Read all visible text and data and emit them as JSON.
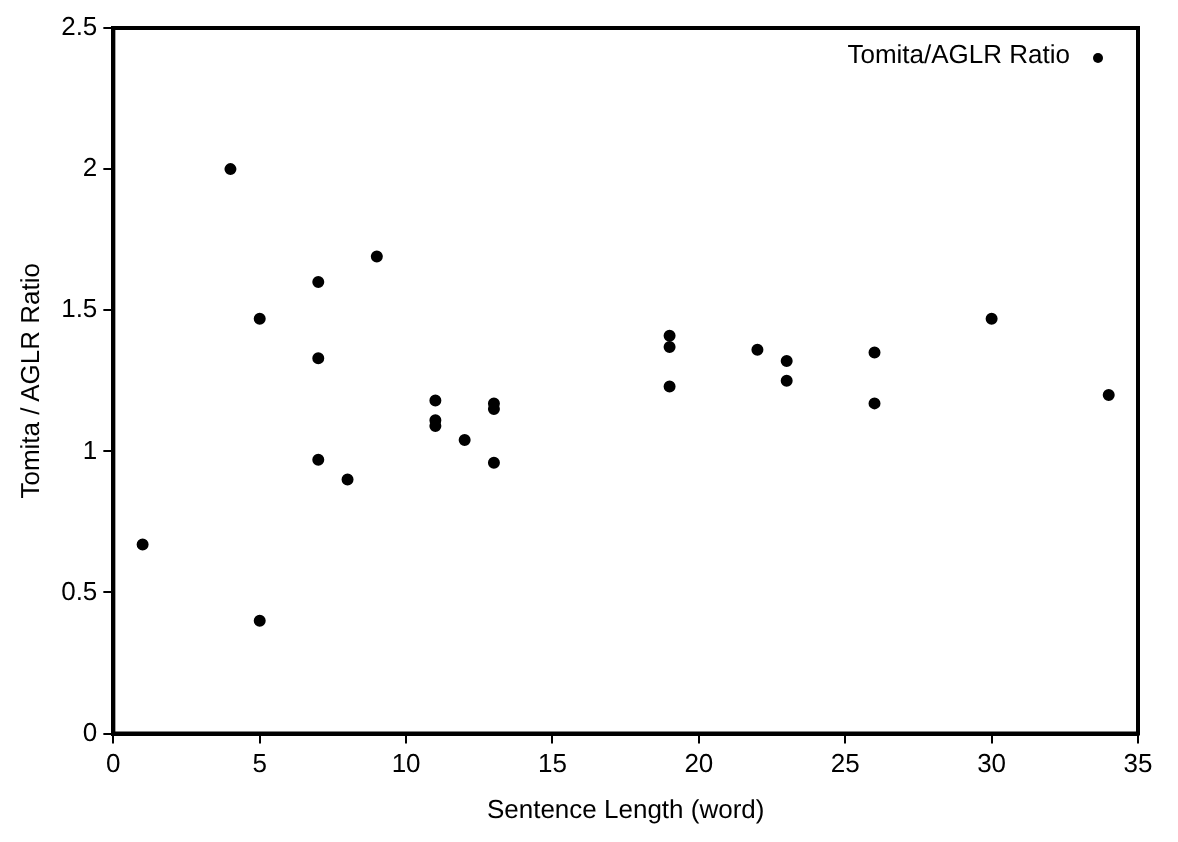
{
  "chart_data": {
    "type": "scatter",
    "xlabel": "Sentence Length (word)",
    "ylabel": "Tomita / AGLR Ratio",
    "x": [
      1,
      4,
      5,
      5,
      7,
      7,
      7,
      8,
      9,
      11,
      11,
      11,
      12,
      13,
      13,
      13,
      19,
      19,
      19,
      22,
      23,
      23,
      26,
      26,
      30,
      34
    ],
    "series": [
      {
        "name": "Tomita/AGLR Ratio",
        "color": "#000000",
        "values": [
          0.67,
          2.0,
          1.47,
          0.4,
          1.6,
          1.33,
          0.97,
          0.9,
          1.69,
          1.18,
          1.11,
          1.09,
          1.04,
          1.17,
          1.15,
          0.96,
          1.41,
          1.37,
          1.23,
          1.36,
          1.32,
          1.25,
          1.35,
          1.17,
          1.47,
          1.2
        ]
      }
    ],
    "xlim": [
      0,
      35
    ],
    "xticks": [
      0,
      5,
      10,
      15,
      20,
      25,
      30,
      35
    ],
    "ylim": [
      0,
      2.5
    ],
    "yticks": [
      0,
      0.5,
      1,
      1.5,
      2,
      2.5
    ],
    "grid": false,
    "legend": "top right",
    "marker": "circle"
  }
}
